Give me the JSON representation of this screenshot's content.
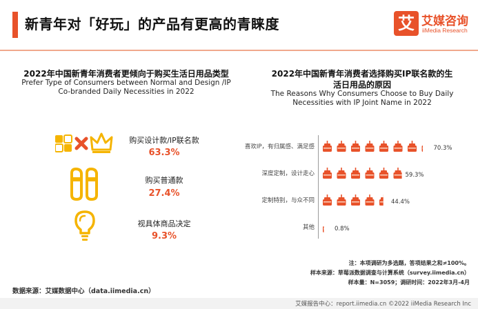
{
  "header": {
    "title": "新青年对「好玩」的产品有更高的青睐度",
    "logo_cn": "艾媒咨询",
    "logo_en": "iiMedia Research",
    "logo_mark": "艾"
  },
  "left_section": {
    "title_cn": "2022年中国新青年消费者更倾向于购买生活日用品类型",
    "title_en_line1": "Prefer Type of Consumers between Normal and Design /IP",
    "title_en_line2": "Co-branded Daily Necessities in 2022",
    "items": [
      {
        "label": "购买设计款/IP联名款",
        "value": "63.3%",
        "icon": "design-ip-icons"
      },
      {
        "label": "购买普通款",
        "value": "27.4%",
        "icon": "slippers-icon"
      },
      {
        "label": "视具体商品决定",
        "value": "9.3%",
        "icon": "lightbulb-icon"
      }
    ]
  },
  "right_section": {
    "title_cn_line1": "2022年中国新青年消费者选择购买IP联名款的生",
    "title_cn_line2": "活日用品的原因",
    "title_en_line1": "The Reasons Why Consumers Choose to Buy Daily",
    "title_en_line2": "Necessities with IP Joint Name in 2022"
  },
  "chart_data": {
    "type": "bar",
    "orientation": "horizontal",
    "mark": "pictogram-cake",
    "categories": [
      "喜欢IP，有归属感、满足感",
      "深度定制，设计走心",
      "定制特别，与众不同",
      "其他"
    ],
    "values": [
      70.3,
      59.3,
      44.4,
      0.8
    ],
    "value_labels": [
      "70.3%",
      "59.3%",
      "44.4%",
      "0.8%"
    ],
    "unit": "%",
    "xlim": [
      0,
      100
    ],
    "colors": {
      "filled": "#e8522a",
      "icon_base": "#f6c2a6"
    }
  },
  "notes": {
    "note1": "注：本项调研为多选题，答项结果之和≠100%。",
    "note2": "样本来源：草莓派数据调查与计算系统（survey.iimedia.cn）",
    "note3": "样本量：N=3059；调研时间：2022年3月-4月"
  },
  "source": "数据来源：艾媒数据中心（data.iimedia.cn）",
  "footer": "艾媒报告中心：report.iimedia.cn  ©2022  iiMedia Research  Inc",
  "colors": {
    "accent": "#e8522a",
    "gold": "#f5b400"
  }
}
